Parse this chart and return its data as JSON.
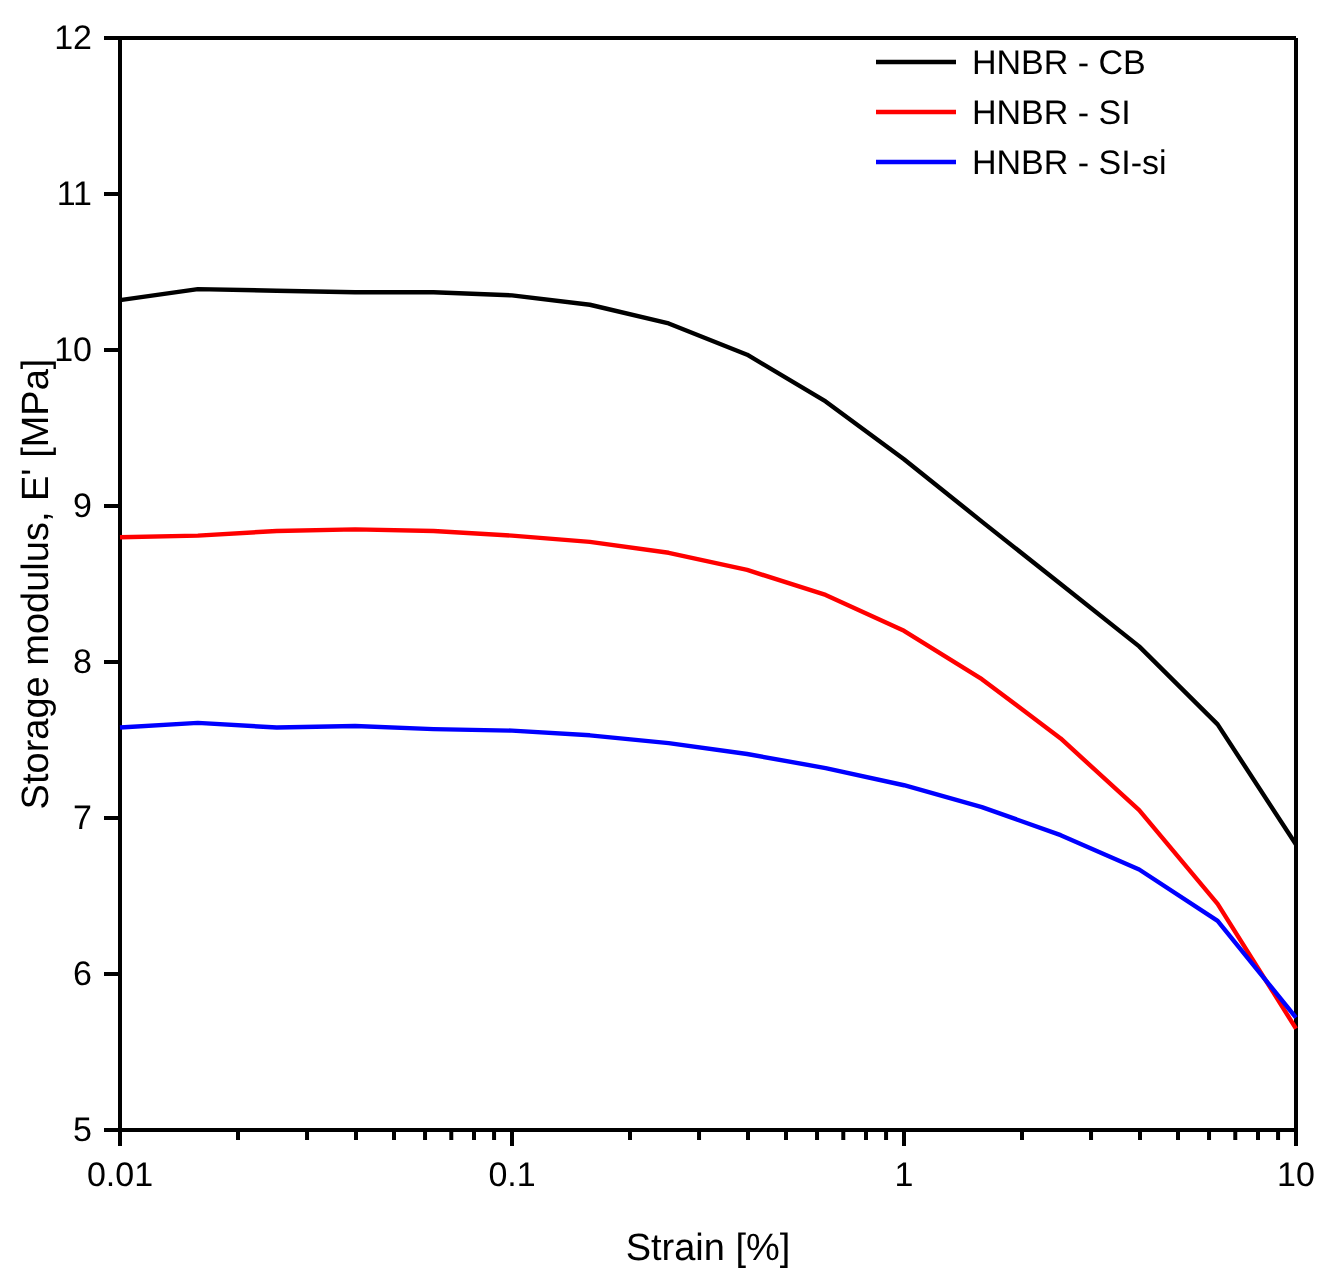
{
  "chart_data": {
    "type": "line",
    "xlabel": "Strain [%]",
    "ylabel": "Storage modulus, E' [MPa]",
    "log": "x",
    "xlim": [
      0.01,
      10
    ],
    "xticks": [
      0.01,
      0.1,
      1,
      10
    ],
    "ylim": [
      5,
      12
    ],
    "yticks": [
      5,
      6,
      7,
      8,
      9,
      10,
      11,
      12
    ],
    "legend": "top right",
    "grid": false,
    "marker": "none",
    "line_style": "solid",
    "x": [
      0.01,
      0.0158,
      0.0251,
      0.0398,
      0.0631,
      0.1,
      0.158,
      0.251,
      0.398,
      0.631,
      1,
      1.58,
      2.51,
      3.98,
      6.31,
      10
    ],
    "series": [
      {
        "name": "HNBR - CB",
        "color": "#000000",
        "values": [
          10.32,
          10.39,
          10.38,
          10.37,
          10.37,
          10.35,
          10.29,
          10.17,
          9.97,
          9.67,
          9.3,
          8.9,
          8.5,
          8.1,
          7.6,
          6.83
        ]
      },
      {
        "name": "HNBR - SI",
        "color": "#ff0000",
        "values": [
          8.8,
          8.81,
          8.84,
          8.85,
          8.84,
          8.81,
          8.77,
          8.7,
          8.59,
          8.43,
          8.2,
          7.89,
          7.51,
          7.05,
          6.45,
          5.65
        ]
      },
      {
        "name": "HNBR - SI-si",
        "color": "#0000ff",
        "values": [
          7.58,
          7.61,
          7.58,
          7.59,
          7.57,
          7.56,
          7.53,
          7.48,
          7.41,
          7.32,
          7.21,
          7.07,
          6.89,
          6.67,
          6.34,
          5.72
        ]
      }
    ]
  }
}
